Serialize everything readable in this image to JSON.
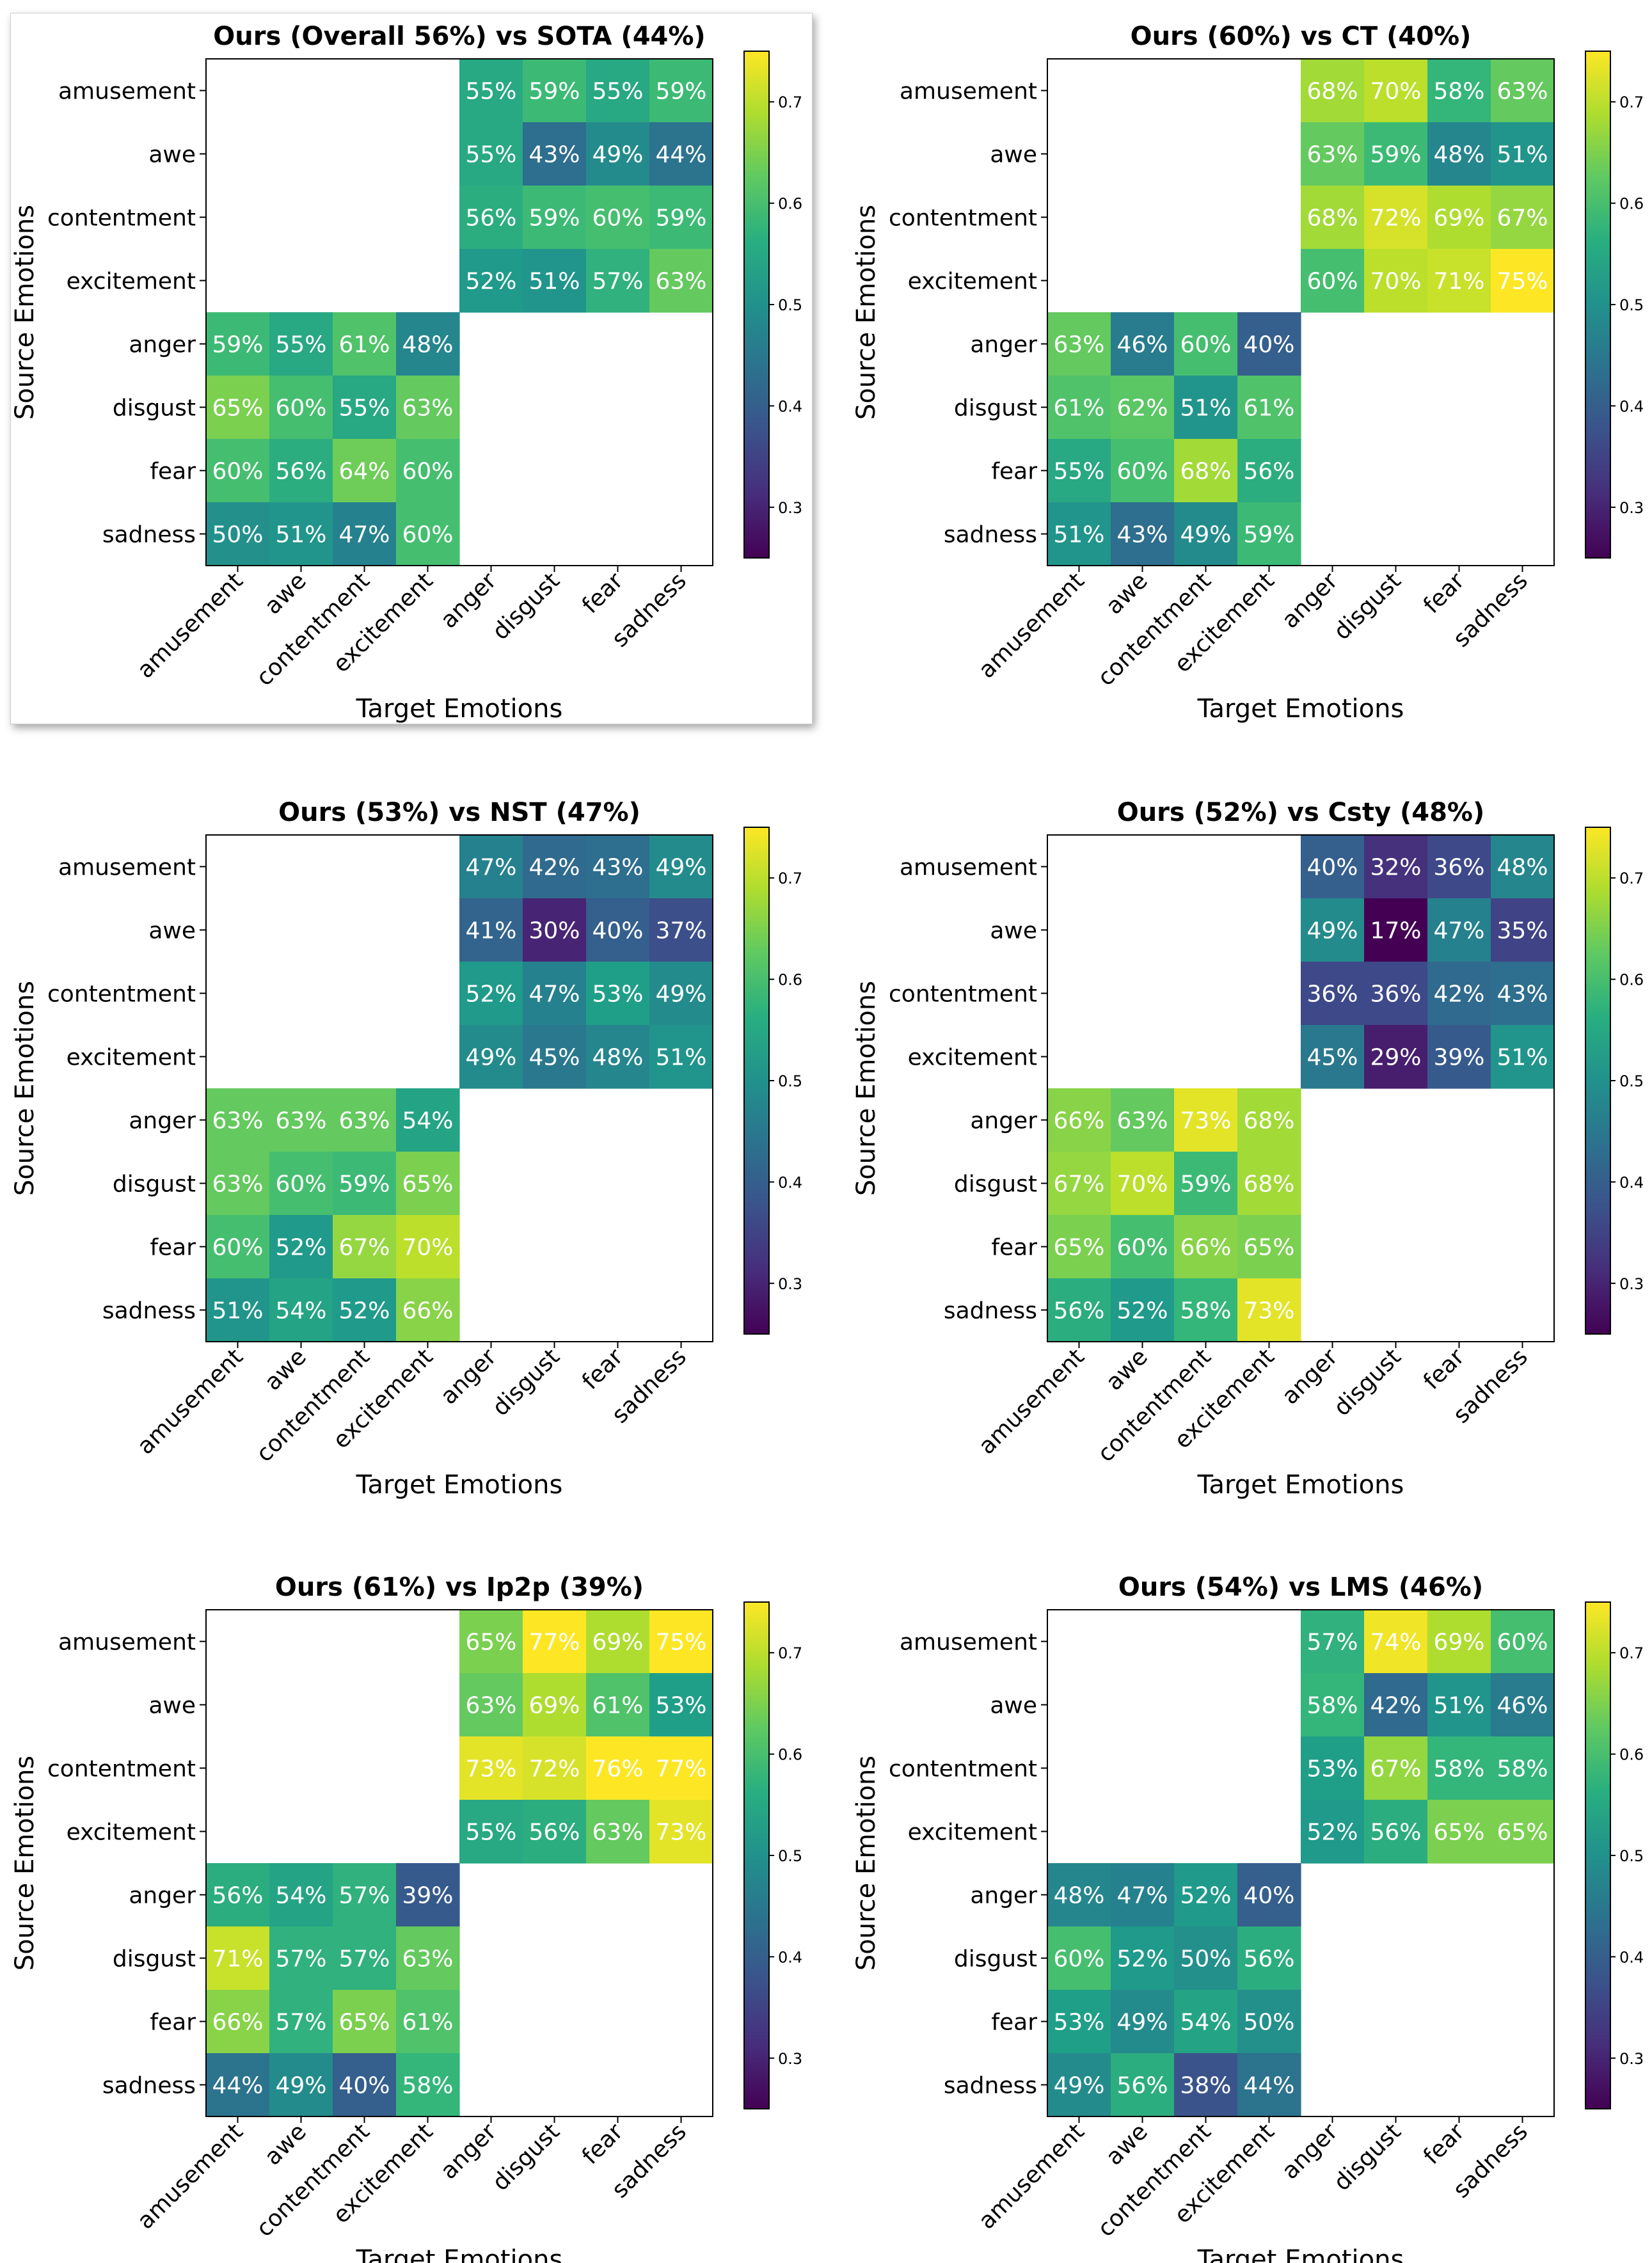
{
  "figure": {
    "xlabel": "Target Emotions",
    "ylabel": "Source Emotions",
    "emotions": [
      "amusement",
      "awe",
      "contentment",
      "excitement",
      "anger",
      "disgust",
      "fear",
      "sadness"
    ],
    "colorbar": {
      "colormap": "viridis",
      "min": 0.25,
      "max": 0.75,
      "ticks": [
        "0.3",
        "0.4",
        "0.5",
        "0.6",
        "0.7"
      ]
    }
  },
  "chart_data": [
    {
      "type": "heatmap",
      "title": "Ours (Overall 56%) vs SOTA (44%)",
      "highlighted": true,
      "xlabel": "Target Emotions",
      "ylabel": "Source Emotions",
      "rows": [
        "amusement",
        "awe",
        "contentment",
        "excitement",
        "anger",
        "disgust",
        "fear",
        "sadness"
      ],
      "cols": [
        "amusement",
        "awe",
        "contentment",
        "excitement",
        "anger",
        "disgust",
        "fear",
        "sadness"
      ],
      "values": [
        [
          null,
          null,
          null,
          null,
          0.55,
          0.59,
          0.55,
          0.59
        ],
        [
          null,
          null,
          null,
          null,
          0.55,
          0.43,
          0.49,
          0.44
        ],
        [
          null,
          null,
          null,
          null,
          0.56,
          0.59,
          0.6,
          0.59
        ],
        [
          null,
          null,
          null,
          null,
          0.52,
          0.51,
          0.57,
          0.63
        ],
        [
          0.59,
          0.55,
          0.61,
          0.48,
          null,
          null,
          null,
          null
        ],
        [
          0.65,
          0.6,
          0.55,
          0.63,
          null,
          null,
          null,
          null
        ],
        [
          0.6,
          0.56,
          0.64,
          0.6,
          null,
          null,
          null,
          null
        ],
        [
          0.5,
          0.51,
          0.47,
          0.6,
          null,
          null,
          null,
          null
        ]
      ],
      "labels": [
        [
          "",
          "",
          "",
          "",
          "55%",
          "59%",
          "55%",
          "59%"
        ],
        [
          "",
          "",
          "",
          "",
          "55%",
          "43%",
          "49%",
          "44%"
        ],
        [
          "",
          "",
          "",
          "",
          "56%",
          "59%",
          "60%",
          "59%"
        ],
        [
          "",
          "",
          "",
          "",
          "52%",
          "51%",
          "57%",
          "63%"
        ],
        [
          "59%",
          "55%",
          "61%",
          "48%",
          "",
          "",
          "",
          ""
        ],
        [
          "65%",
          "60%",
          "55%",
          "63%",
          "",
          "",
          "",
          ""
        ],
        [
          "60%",
          "56%",
          "64%",
          "60%",
          "",
          "",
          "",
          ""
        ],
        [
          "50%",
          "51%",
          "47%",
          "60%",
          "",
          "",
          "",
          ""
        ]
      ]
    },
    {
      "type": "heatmap",
      "title": "Ours (60%) vs CT (40%)",
      "highlighted": false,
      "xlabel": "Target Emotions",
      "ylabel": "Source Emotions",
      "rows": [
        "amusement",
        "awe",
        "contentment",
        "excitement",
        "anger",
        "disgust",
        "fear",
        "sadness"
      ],
      "cols": [
        "amusement",
        "awe",
        "contentment",
        "excitement",
        "anger",
        "disgust",
        "fear",
        "sadness"
      ],
      "values": [
        [
          null,
          null,
          null,
          null,
          0.68,
          0.7,
          0.58,
          0.63
        ],
        [
          null,
          null,
          null,
          null,
          0.63,
          0.59,
          0.48,
          0.51
        ],
        [
          null,
          null,
          null,
          null,
          0.68,
          0.72,
          0.69,
          0.67
        ],
        [
          null,
          null,
          null,
          null,
          0.6,
          0.7,
          0.71,
          0.75
        ],
        [
          0.63,
          0.46,
          0.6,
          0.4,
          null,
          null,
          null,
          null
        ],
        [
          0.61,
          0.62,
          0.51,
          0.61,
          null,
          null,
          null,
          null
        ],
        [
          0.55,
          0.6,
          0.68,
          0.56,
          null,
          null,
          null,
          null
        ],
        [
          0.51,
          0.43,
          0.49,
          0.59,
          null,
          null,
          null,
          null
        ]
      ],
      "labels": [
        [
          "",
          "",
          "",
          "",
          "68%",
          "70%",
          "58%",
          "63%"
        ],
        [
          "",
          "",
          "",
          "",
          "63%",
          "59%",
          "48%",
          "51%"
        ],
        [
          "",
          "",
          "",
          "",
          "68%",
          "72%",
          "69%",
          "67%"
        ],
        [
          "",
          "",
          "",
          "",
          "60%",
          "70%",
          "71%",
          "75%"
        ],
        [
          "63%",
          "46%",
          "60%",
          "40%",
          "",
          "",
          "",
          ""
        ],
        [
          "61%",
          "62%",
          "51%",
          "61%",
          "",
          "",
          "",
          ""
        ],
        [
          "55%",
          "60%",
          "68%",
          "56%",
          "",
          "",
          "",
          ""
        ],
        [
          "51%",
          "43%",
          "49%",
          "59%",
          "",
          "",
          "",
          ""
        ]
      ]
    },
    {
      "type": "heatmap",
      "title": "Ours (53%) vs NST (47%)",
      "highlighted": false,
      "xlabel": "Target Emotions",
      "ylabel": "Source Emotions",
      "rows": [
        "amusement",
        "awe",
        "contentment",
        "excitement",
        "anger",
        "disgust",
        "fear",
        "sadness"
      ],
      "cols": [
        "amusement",
        "awe",
        "contentment",
        "excitement",
        "anger",
        "disgust",
        "fear",
        "sadness"
      ],
      "values": [
        [
          null,
          null,
          null,
          null,
          0.47,
          0.42,
          0.43,
          0.49
        ],
        [
          null,
          null,
          null,
          null,
          0.41,
          0.3,
          0.4,
          0.37
        ],
        [
          null,
          null,
          null,
          null,
          0.52,
          0.47,
          0.53,
          0.49
        ],
        [
          null,
          null,
          null,
          null,
          0.49,
          0.45,
          0.48,
          0.51
        ],
        [
          0.63,
          0.63,
          0.63,
          0.54,
          null,
          null,
          null,
          null
        ],
        [
          0.63,
          0.6,
          0.59,
          0.65,
          null,
          null,
          null,
          null
        ],
        [
          0.6,
          0.52,
          0.67,
          0.7,
          null,
          null,
          null,
          null
        ],
        [
          0.51,
          0.54,
          0.52,
          0.66,
          null,
          null,
          null,
          null
        ]
      ],
      "labels": [
        [
          "",
          "",
          "",
          "",
          "47%",
          "42%",
          "43%",
          "49%"
        ],
        [
          "",
          "",
          "",
          "",
          "41%",
          "30%",
          "40%",
          "37%"
        ],
        [
          "",
          "",
          "",
          "",
          "52%",
          "47%",
          "53%",
          "49%"
        ],
        [
          "",
          "",
          "",
          "",
          "49%",
          "45%",
          "48%",
          "51%"
        ],
        [
          "63%",
          "63%",
          "63%",
          "54%",
          "",
          "",
          "",
          ""
        ],
        [
          "63%",
          "60%",
          "59%",
          "65%",
          "",
          "",
          "",
          ""
        ],
        [
          "60%",
          "52%",
          "67%",
          "70%",
          "",
          "",
          "",
          ""
        ],
        [
          "51%",
          "54%",
          "52%",
          "66%",
          "",
          "",
          "",
          ""
        ]
      ]
    },
    {
      "type": "heatmap",
      "title": "Ours (52%) vs Csty (48%)",
      "highlighted": false,
      "xlabel": "Target Emotions",
      "ylabel": "Source Emotions",
      "rows": [
        "amusement",
        "awe",
        "contentment",
        "excitement",
        "anger",
        "disgust",
        "fear",
        "sadness"
      ],
      "cols": [
        "amusement",
        "awe",
        "contentment",
        "excitement",
        "anger",
        "disgust",
        "fear",
        "sadness"
      ],
      "values": [
        [
          null,
          null,
          null,
          null,
          0.4,
          0.32,
          0.36,
          0.48
        ],
        [
          null,
          null,
          null,
          null,
          0.49,
          0.17,
          0.47,
          0.35
        ],
        [
          null,
          null,
          null,
          null,
          0.36,
          0.36,
          0.42,
          0.43
        ],
        [
          null,
          null,
          null,
          null,
          0.45,
          0.29,
          0.39,
          0.51
        ],
        [
          0.66,
          0.63,
          0.73,
          0.68,
          null,
          null,
          null,
          null
        ],
        [
          0.67,
          0.7,
          0.59,
          0.68,
          null,
          null,
          null,
          null
        ],
        [
          0.65,
          0.6,
          0.66,
          0.65,
          null,
          null,
          null,
          null
        ],
        [
          0.56,
          0.52,
          0.58,
          0.73,
          null,
          null,
          null,
          null
        ]
      ],
      "labels": [
        [
          "",
          "",
          "",
          "",
          "40%",
          "32%",
          "36%",
          "48%"
        ],
        [
          "",
          "",
          "",
          "",
          "49%",
          "17%",
          "47%",
          "35%"
        ],
        [
          "",
          "",
          "",
          "",
          "36%",
          "36%",
          "42%",
          "43%"
        ],
        [
          "",
          "",
          "",
          "",
          "45%",
          "29%",
          "39%",
          "51%"
        ],
        [
          "66%",
          "63%",
          "73%",
          "68%",
          "",
          "",
          "",
          ""
        ],
        [
          "67%",
          "70%",
          "59%",
          "68%",
          "",
          "",
          "",
          ""
        ],
        [
          "65%",
          "60%",
          "66%",
          "65%",
          "",
          "",
          "",
          ""
        ],
        [
          "56%",
          "52%",
          "58%",
          "73%",
          "",
          "",
          "",
          ""
        ]
      ]
    },
    {
      "type": "heatmap",
      "title": "Ours (61%) vs Ip2p (39%)",
      "highlighted": false,
      "xlabel": "Target Emotions",
      "ylabel": "Source Emotions",
      "rows": [
        "amusement",
        "awe",
        "contentment",
        "excitement",
        "anger",
        "disgust",
        "fear",
        "sadness"
      ],
      "cols": [
        "amusement",
        "awe",
        "contentment",
        "excitement",
        "anger",
        "disgust",
        "fear",
        "sadness"
      ],
      "values": [
        [
          null,
          null,
          null,
          null,
          0.65,
          0.77,
          0.69,
          0.75
        ],
        [
          null,
          null,
          null,
          null,
          0.63,
          0.69,
          0.61,
          0.53
        ],
        [
          null,
          null,
          null,
          null,
          0.73,
          0.72,
          0.76,
          0.77
        ],
        [
          null,
          null,
          null,
          null,
          0.55,
          0.56,
          0.63,
          0.73
        ],
        [
          0.56,
          0.54,
          0.57,
          0.39,
          null,
          null,
          null,
          null
        ],
        [
          0.71,
          0.57,
          0.57,
          0.63,
          null,
          null,
          null,
          null
        ],
        [
          0.66,
          0.57,
          0.65,
          0.61,
          null,
          null,
          null,
          null
        ],
        [
          0.44,
          0.49,
          0.4,
          0.58,
          null,
          null,
          null,
          null
        ]
      ],
      "labels": [
        [
          "",
          "",
          "",
          "",
          "65%",
          "77%",
          "69%",
          "75%"
        ],
        [
          "",
          "",
          "",
          "",
          "63%",
          "69%",
          "61%",
          "53%"
        ],
        [
          "",
          "",
          "",
          "",
          "73%",
          "72%",
          "76%",
          "77%"
        ],
        [
          "",
          "",
          "",
          "",
          "55%",
          "56%",
          "63%",
          "73%"
        ],
        [
          "56%",
          "54%",
          "57%",
          "39%",
          "",
          "",
          "",
          ""
        ],
        [
          "71%",
          "57%",
          "57%",
          "63%",
          "",
          "",
          "",
          ""
        ],
        [
          "66%",
          "57%",
          "65%",
          "61%",
          "",
          "",
          "",
          ""
        ],
        [
          "44%",
          "49%",
          "40%",
          "58%",
          "",
          "",
          "",
          ""
        ]
      ]
    },
    {
      "type": "heatmap",
      "title": "Ours (54%) vs LMS (46%)",
      "highlighted": false,
      "xlabel": "Target Emotions",
      "ylabel": "Source Emotions",
      "rows": [
        "amusement",
        "awe",
        "contentment",
        "excitement",
        "anger",
        "disgust",
        "fear",
        "sadness"
      ],
      "cols": [
        "amusement",
        "awe",
        "contentment",
        "excitement",
        "anger",
        "disgust",
        "fear",
        "sadness"
      ],
      "values": [
        [
          null,
          null,
          null,
          null,
          0.57,
          0.74,
          0.69,
          0.6
        ],
        [
          null,
          null,
          null,
          null,
          0.58,
          0.42,
          0.51,
          0.46
        ],
        [
          null,
          null,
          null,
          null,
          0.53,
          0.67,
          0.58,
          0.58
        ],
        [
          null,
          null,
          null,
          null,
          0.52,
          0.56,
          0.65,
          0.65
        ],
        [
          0.48,
          0.47,
          0.52,
          0.4,
          null,
          null,
          null,
          null
        ],
        [
          0.6,
          0.52,
          0.5,
          0.56,
          null,
          null,
          null,
          null
        ],
        [
          0.53,
          0.49,
          0.54,
          0.5,
          null,
          null,
          null,
          null
        ],
        [
          0.49,
          0.56,
          0.38,
          0.44,
          null,
          null,
          null,
          null
        ]
      ],
      "labels": [
        [
          "",
          "",
          "",
          "",
          "57%",
          "74%",
          "69%",
          "60%"
        ],
        [
          "",
          "",
          "",
          "",
          "58%",
          "42%",
          "51%",
          "46%"
        ],
        [
          "",
          "",
          "",
          "",
          "53%",
          "67%",
          "58%",
          "58%"
        ],
        [
          "",
          "",
          "",
          "",
          "52%",
          "56%",
          "65%",
          "65%"
        ],
        [
          "48%",
          "47%",
          "52%",
          "40%",
          "",
          "",
          "",
          ""
        ],
        [
          "60%",
          "52%",
          "50%",
          "56%",
          "",
          "",
          "",
          ""
        ],
        [
          "53%",
          "49%",
          "54%",
          "50%",
          "",
          "",
          "",
          ""
        ],
        [
          "49%",
          "56%",
          "38%",
          "44%",
          "",
          "",
          "",
          ""
        ]
      ]
    }
  ]
}
